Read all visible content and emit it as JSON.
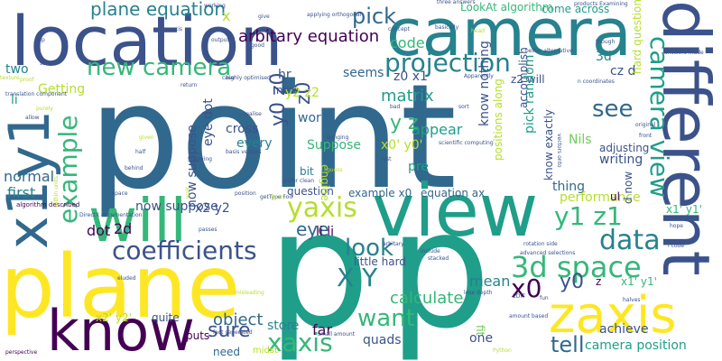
{
  "palette": {
    "dark_purple": "#440154",
    "indigo": "#3b528b",
    "steel_blue": "#31688e",
    "teal_blue": "#26828e",
    "teal": "#1f9e89",
    "green": "#35b779",
    "lime": "#6ece58",
    "yellow_green": "#b5de2b",
    "yellow": "#fde725"
  },
  "words": [
    {
      "text": "point",
      "color": "#31688e"
    },
    {
      "text": "p",
      "color": "#1f9e89"
    },
    {
      "text": "p",
      "color": "#1f9e89"
    },
    {
      "text": "location",
      "color": "#3b528b"
    },
    {
      "text": "camera",
      "color": "#26828e"
    },
    {
      "text": "view",
      "color": "#1f9e89"
    },
    {
      "text": "plane",
      "color": "#fde725"
    },
    {
      "text": "will",
      "color": "#35b779"
    },
    {
      "text": "know",
      "color": "#440154"
    },
    {
      "text": "x1",
      "color": "#31688e"
    },
    {
      "text": "y1",
      "color": "#31688e"
    },
    {
      "text": "different",
      "color": "#3b528b"
    },
    {
      "text": "zaxis",
      "color": "#fde725"
    },
    {
      "text": "coefficients",
      "color": "#3b528b"
    },
    {
      "text": "3d space",
      "color": "#35b779"
    },
    {
      "text": "new camera",
      "color": "#35b779"
    },
    {
      "text": "projection",
      "color": "#26828e"
    },
    {
      "text": "yaxis",
      "color": "#b5de2b"
    },
    {
      "text": "xaxis",
      "color": "#35b779"
    },
    {
      "text": "want",
      "color": "#35b779"
    },
    {
      "text": "camera view",
      "color": "#1f9e89"
    },
    {
      "text": "example",
      "color": "#35b779"
    },
    {
      "text": "look",
      "color": "#26828e"
    },
    {
      "text": "X Y",
      "color": "#26828e"
    },
    {
      "text": "data",
      "color": "#26828e"
    },
    {
      "text": "y1 z1",
      "color": "#35b779"
    },
    {
      "text": "x0",
      "color": "#440154"
    },
    {
      "text": "y0",
      "color": "#3b528b"
    },
    {
      "text": "sure",
      "color": "#3b528b"
    },
    {
      "text": "tell",
      "color": "#31688e"
    },
    {
      "text": "pick",
      "color": "#31688e"
    },
    {
      "text": "see",
      "color": "#31688e"
    },
    {
      "text": "plane equation",
      "color": "#26828e"
    },
    {
      "text": "arbitary equation",
      "color": "#440154"
    },
    {
      "text": "camera position",
      "color": "#1f9e89"
    },
    {
      "text": "object",
      "color": "#31688e"
    },
    {
      "text": "calculate",
      "color": "#35b779"
    },
    {
      "text": "mean",
      "color": "#26828e"
    },
    {
      "text": "y0 z0",
      "color": "#3b528b"
    },
    {
      "text": "z0",
      "color": "#3b528b"
    },
    {
      "text": "eye",
      "color": "#31688e"
    },
    {
      "text": "y z",
      "color": "#35b779"
    },
    {
      "text": "code",
      "color": "#35b779"
    },
    {
      "text": "matrix",
      "color": "#1f9e89"
    },
    {
      "text": "normal",
      "color": "#31688e"
    },
    {
      "text": "first",
      "color": "#26828e"
    },
    {
      "text": "dot",
      "color": "#440154"
    },
    {
      "text": "2d",
      "color": "#440154"
    },
    {
      "text": "li li",
      "color": "#440154"
    },
    {
      "text": "Suppose",
      "color": "#35b779"
    },
    {
      "text": "cross",
      "color": "#3b528b"
    },
    {
      "text": "every",
      "color": "#26828e"
    },
    {
      "text": "eye dot",
      "color": "#3b528b"
    },
    {
      "text": "now suppose",
      "color": "#3b528b"
    },
    {
      "text": "x2 y2",
      "color": "#3b528b"
    },
    {
      "text": "far",
      "color": "#440154"
    },
    {
      "text": "need",
      "color": "#31688e"
    },
    {
      "text": "store",
      "color": "#26828e"
    },
    {
      "text": "quads",
      "color": "#3b528b"
    },
    {
      "text": "numpy",
      "color": "#3b528b"
    },
    {
      "text": "fit",
      "color": "#6ece58"
    },
    {
      "text": "one",
      "color": "#3b528b"
    },
    {
      "text": "achieve",
      "color": "#3b528b"
    },
    {
      "text": "seems",
      "color": "#31688e"
    },
    {
      "text": "works",
      "color": "#31688e"
    },
    {
      "text": "appear",
      "color": "#1f9e89"
    },
    {
      "text": "pre",
      "color": "#1f9e89"
    },
    {
      "text": "x0' y0'",
      "color": "#b5de2b"
    },
    {
      "text": "pick random",
      "color": "#1f9e89"
    },
    {
      "text": "know nothing",
      "color": "#3b528b"
    },
    {
      "text": "little hard",
      "color": "#3b528b"
    },
    {
      "text": "equation ax",
      "color": "#31688e"
    },
    {
      "text": "example x0",
      "color": "#31688e"
    },
    {
      "text": "question",
      "color": "#3b528b"
    },
    {
      "text": "engine",
      "color": "#b5de2b"
    },
    {
      "text": "bit",
      "color": "#26828e"
    },
    {
      "text": "x2' y2'",
      "color": "#b5de2b"
    },
    {
      "text": "quite",
      "color": "#3b528b"
    },
    {
      "text": "puts",
      "color": "#440154"
    },
    {
      "text": "midst",
      "color": "#b5de2b"
    },
    {
      "text": "z0 x1",
      "color": "#3b528b"
    },
    {
      "text": "z2 will",
      "color": "#3b528b"
    },
    {
      "text": "cz d",
      "color": "#3b528b"
    },
    {
      "text": "3d",
      "color": "#26828e"
    },
    {
      "text": "li",
      "color": "#1f9e89"
    },
    {
      "text": "two",
      "color": "#26828e"
    },
    {
      "text": "Getting",
      "color": "#b5de2b"
    },
    {
      "text": "hr",
      "color": "#3b528b"
    },
    {
      "text": "new",
      "color": "#3b528b"
    },
    {
      "text": "y2 z2",
      "color": "#b5de2b"
    },
    {
      "text": "x",
      "color": "#b5de2b"
    },
    {
      "text": "writing",
      "color": "#3b528b"
    },
    {
      "text": "adjusting",
      "color": "#3b528b"
    },
    {
      "text": "Nils",
      "color": "#6ece58"
    },
    {
      "text": "accomplish",
      "color": "#3b528b"
    },
    {
      "text": "six",
      "color": "#440154"
    },
    {
      "text": "thing",
      "color": "#31688e"
    },
    {
      "text": "performance",
      "color": "#b5de2b"
    },
    {
      "text": "positions along",
      "color": "#b5de2b"
    },
    {
      "text": "hard question",
      "color": "#b5de2b"
    },
    {
      "text": "know exactly",
      "color": "#3b528b"
    },
    {
      "text": "d now",
      "color": "#3b528b"
    },
    {
      "text": "x1' y1'",
      "color": "#35b779"
    },
    {
      "text": "z",
      "color": "#440154"
    },
    {
      "text": "ul",
      "color": "#440154"
    },
    {
      "text": "come across",
      "color": "#1f9e89"
    },
    {
      "text": "LookAt algorithm",
      "color": "#35b779"
    },
    {
      "text": "three answers",
      "color": "#3b528b"
    },
    {
      "text": "products Examining",
      "color": "#3b528b"
    },
    {
      "text": "working",
      "color": "#3b528b"
    },
    {
      "text": "give",
      "color": "#3b528b"
    },
    {
      "text": "applying orthogonal",
      "color": "#3b528b"
    },
    {
      "text": "concept",
      "color": "#3b528b"
    },
    {
      "text": "head",
      "color": "#b5de2b"
    },
    {
      "text": "good",
      "color": "#3b528b"
    },
    {
      "text": "top",
      "color": "#3b528b"
    },
    {
      "text": "output",
      "color": "#3b528b"
    },
    {
      "text": "axis",
      "color": "#3b528b"
    },
    {
      "text": "better alternative",
      "color": "#3b528b"
    },
    {
      "text": "stored",
      "color": "#3b528b"
    },
    {
      "text": "highly optimised",
      "color": "#3b528b"
    },
    {
      "text": "translation component",
      "color": "#3b528b"
    },
    {
      "text": "return",
      "color": "#3b528b"
    },
    {
      "text": "Apparently",
      "color": "#3b528b"
    },
    {
      "text": "n coordinates",
      "color": "#3b528b"
    },
    {
      "text": "answers made",
      "color": "#3b528b"
    },
    {
      "text": "though",
      "color": "#3b528b"
    },
    {
      "text": "allow",
      "color": "#3b528b"
    },
    {
      "text": "purely",
      "color": "#b5de2b"
    },
    {
      "text": "realise",
      "color": "#3b528b"
    },
    {
      "text": "sort",
      "color": "#3b528b"
    },
    {
      "text": "bad",
      "color": "#3b528b"
    },
    {
      "text": "original",
      "color": "#3b528b"
    },
    {
      "text": "given",
      "color": "#b5de2b"
    },
    {
      "text": "scientific computing",
      "color": "#3b528b"
    },
    {
      "text": "basis vectors",
      "color": "#3b528b"
    },
    {
      "text": "rest",
      "color": "#3b528b"
    },
    {
      "text": "half",
      "color": "#3b528b"
    },
    {
      "text": "prefer clean",
      "color": "#3b528b"
    },
    {
      "text": "behind",
      "color": "#3b528b"
    },
    {
      "text": "guess",
      "color": "#b5de2b"
    },
    {
      "text": "following",
      "color": "#3b528b"
    },
    {
      "text": "algorithm described",
      "color": "#440154"
    },
    {
      "text": "space",
      "color": "#3b528b"
    },
    {
      "text": "getType Foo",
      "color": "#3b528b"
    },
    {
      "text": "position",
      "color": "#3b528b"
    },
    {
      "text": "passes",
      "color": "#3b528b"
    },
    {
      "text": "DirectX documentation",
      "color": "#3b528b"
    },
    {
      "text": "arbitary",
      "color": "#3b528b"
    },
    {
      "text": "include",
      "color": "#3b528b"
    },
    {
      "text": "stacked",
      "color": "#3b528b"
    },
    {
      "text": "Python",
      "color": "#b5de2b"
    },
    {
      "text": "advanced selections",
      "color": "#3b528b"
    },
    {
      "text": "rotation side",
      "color": "#3b528b"
    },
    {
      "text": "eluded",
      "color": "#3b528b"
    },
    {
      "text": "misleading",
      "color": "#b5de2b"
    },
    {
      "text": "amount based",
      "color": "#3b528b"
    },
    {
      "text": "EDIT",
      "color": "#3b528b"
    },
    {
      "text": "fun",
      "color": "#3b528b"
    },
    {
      "text": "halves",
      "color": "#3b528b"
    },
    {
      "text": "front",
      "color": "#3b528b"
    },
    {
      "text": "hope",
      "color": "#3b528b"
    },
    {
      "text": "l code",
      "color": "#3b528b"
    },
    {
      "text": "small amount",
      "color": "#3b528b"
    },
    {
      "text": "fact seperated",
      "color": "#3b528b"
    },
    {
      "text": "perspective",
      "color": "#440154"
    },
    {
      "text": "lose depth",
      "color": "#3b528b"
    },
    {
      "text": "basically",
      "color": "#3b528b"
    },
    {
      "text": "proof",
      "color": "#b5de2b"
    },
    {
      "text": "texture",
      "color": "#b5de2b"
    },
    {
      "text": "within units",
      "color": "#b5de2b"
    },
    {
      "text": "wait",
      "color": "#b5de2b"
    },
    {
      "text": "vectors onto",
      "color": "#3b528b"
    },
    {
      "text": "case",
      "color": "#3b528b"
    },
    {
      "text": "banging",
      "color": "#3b528b"
    },
    {
      "text": "Score",
      "color": "#b5de2b"
    }
  ]
}
